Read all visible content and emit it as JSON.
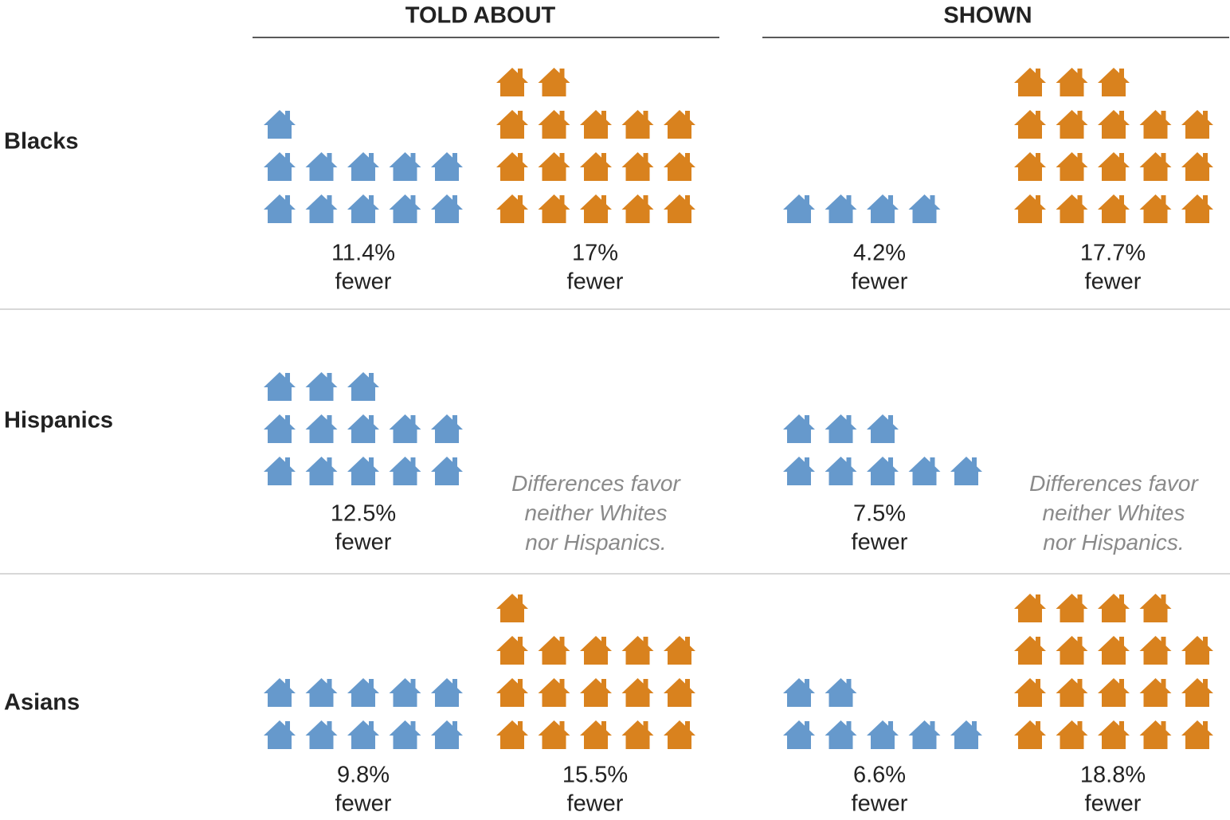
{
  "chart_data": {
    "type": "pictogram",
    "groups": [
      "TOLD ABOUT",
      "SHOWN"
    ],
    "rows": [
      {
        "label": "Blacks",
        "cells": [
          {
            "value": 11.4,
            "value_label": "11.4%",
            "text": "fewer",
            "color": "#6699cc"
          },
          {
            "value": 17,
            "value_label": "17%",
            "text": "fewer",
            "color": "#d9821e"
          },
          {
            "value": 4.2,
            "value_label": "4.2%",
            "text": "fewer",
            "color": "#6699cc"
          },
          {
            "value": 17.7,
            "value_label": "17.7%",
            "text": "fewer",
            "color": "#d9821e"
          }
        ]
      },
      {
        "label": "Hispanics",
        "cells": [
          {
            "value": 12.5,
            "value_label": "12.5%",
            "text": "fewer",
            "color": "#6699cc"
          },
          {
            "note": [
              "Differences favor",
              "neither Whites",
              "nor Hispanics."
            ]
          },
          {
            "value": 7.5,
            "value_label": "7.5%",
            "text": "fewer",
            "color": "#6699cc"
          },
          {
            "note": [
              "Differences favor",
              "neither Whites",
              "nor Hispanics."
            ]
          }
        ]
      },
      {
        "label": "Asians",
        "cells": [
          {
            "value": 9.8,
            "value_label": "9.8%",
            "text": "fewer",
            "color": "#6699cc"
          },
          {
            "value": 15.5,
            "value_label": "15.5%",
            "text": "fewer",
            "color": "#d9821e"
          },
          {
            "value": 6.6,
            "value_label": "6.6%",
            "text": "fewer",
            "color": "#6699cc"
          },
          {
            "value": 18.8,
            "value_label": "18.8%",
            "text": "fewer",
            "color": "#d9821e"
          }
        ]
      }
    ]
  }
}
